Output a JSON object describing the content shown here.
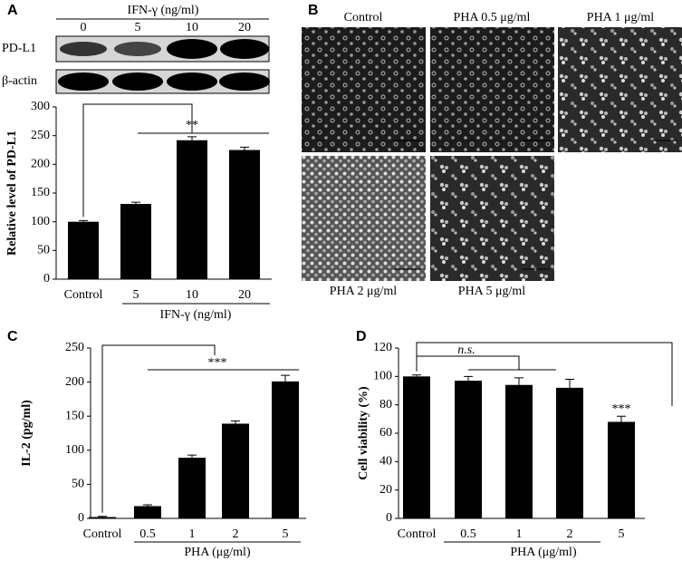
{
  "blot": {
    "panel": "A",
    "title": "IFN-γ (ng/ml)",
    "lanes": [
      "0",
      "5",
      "10",
      "20"
    ],
    "rows": [
      "PD-L1",
      "β-actin"
    ]
  },
  "micrographs": {
    "panel": "B",
    "labels": [
      "Control",
      "PHA 0.5 μg/ml",
      "PHA 1 μg/ml",
      "PHA 2 μg/ml",
      "PHA 5 μg/ml"
    ]
  },
  "chart_data": [
    {
      "type": "bar",
      "y_label": "Relative level of PD-L1",
      "x_label": "IFN-γ (ng/ml)",
      "categories": [
        "Control",
        "5",
        "10",
        "20"
      ],
      "values": [
        100,
        131,
        242,
        225
      ],
      "errors": [
        2,
        3,
        6,
        5
      ],
      "color": "#000000",
      "ylim": [
        0,
        300
      ],
      "yticks": [
        0,
        50,
        100,
        150,
        200,
        250,
        300
      ],
      "significance": "**"
    },
    {
      "type": "bar",
      "panel": "C",
      "y_label": "IL-2 (pg/ml)",
      "x_label": "PHA (μg/ml)",
      "categories": [
        "Control",
        "0.5",
        "1",
        "2",
        "5"
      ],
      "values": [
        2,
        18,
        89,
        139,
        201
      ],
      "errors": [
        1,
        2,
        4,
        4,
        9
      ],
      "color": "#000000",
      "ylim": [
        0,
        250
      ],
      "yticks": [
        0,
        50,
        100,
        150,
        200,
        250
      ],
      "significance": "***"
    },
    {
      "type": "bar",
      "panel": "D",
      "y_label": "Cell viability (%)",
      "x_label": "PHA (μg/ml)",
      "categories": [
        "Control",
        "0.5",
        "1",
        "2",
        "5"
      ],
      "values": [
        100,
        97,
        94,
        92,
        68
      ],
      "errors": [
        1,
        3,
        5,
        6,
        4
      ],
      "color": "#000000",
      "ylim": [
        0,
        120
      ],
      "yticks": [
        0,
        20,
        40,
        60,
        80,
        100,
        120
      ],
      "significance": "***",
      "ns_label": "n.s."
    }
  ]
}
